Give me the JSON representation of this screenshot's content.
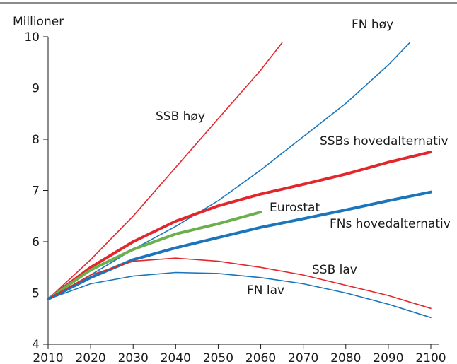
{
  "chart_data": {
    "type": "line",
    "ylabel": "Millioner",
    "xlim": [
      2010,
      2100
    ],
    "xticks": [
      2010,
      2020,
      2030,
      2040,
      2050,
      2060,
      2070,
      2080,
      2090,
      2100
    ],
    "ylim": [
      4,
      10
    ],
    "yticks": [
      4,
      5,
      6,
      7,
      8,
      9,
      10
    ],
    "series": [
      {
        "name": "SSB høy",
        "color": "#e3262b",
        "width": "thin",
        "x": [
          2010,
          2020,
          2030,
          2040,
          2050,
          2060,
          2065
        ],
        "values": [
          4.88,
          5.65,
          6.5,
          7.45,
          8.4,
          9.35,
          9.88
        ]
      },
      {
        "name": "FN høy",
        "color": "#1a75bb",
        "width": "thin",
        "x": [
          2010,
          2020,
          2030,
          2040,
          2050,
          2060,
          2070,
          2080,
          2090,
          2095
        ],
        "values": [
          4.88,
          5.35,
          5.85,
          6.3,
          6.8,
          7.4,
          8.05,
          8.7,
          9.45,
          9.88
        ]
      },
      {
        "name": "SSBs hovedalternativ",
        "color": "#e3262b",
        "width": "thick",
        "x": [
          2010,
          2020,
          2030,
          2040,
          2050,
          2060,
          2070,
          2080,
          2090,
          2100
        ],
        "values": [
          4.88,
          5.5,
          6.0,
          6.4,
          6.7,
          6.93,
          7.12,
          7.32,
          7.55,
          7.75
        ]
      },
      {
        "name": "Eurostat",
        "color": "#6ab04c",
        "width": "thick",
        "x": [
          2010,
          2020,
          2030,
          2040,
          2050,
          2060
        ],
        "values": [
          4.88,
          5.45,
          5.85,
          6.15,
          6.35,
          6.58
        ]
      },
      {
        "name": "FNs hovedalternativ",
        "color": "#1a75bb",
        "width": "thick",
        "x": [
          2010,
          2020,
          2030,
          2040,
          2050,
          2060,
          2070,
          2080,
          2090,
          2100
        ],
        "values": [
          4.88,
          5.3,
          5.65,
          5.88,
          6.08,
          6.28,
          6.45,
          6.62,
          6.8,
          6.97
        ]
      },
      {
        "name": "SSB lav",
        "color": "#e3262b",
        "width": "thin",
        "x": [
          2010,
          2020,
          2030,
          2040,
          2050,
          2060,
          2070,
          2080,
          2090,
          2100
        ],
        "values": [
          4.88,
          5.35,
          5.62,
          5.68,
          5.62,
          5.5,
          5.35,
          5.15,
          4.95,
          4.7
        ]
      },
      {
        "name": "FN lav",
        "color": "#1a75bb",
        "width": "thin",
        "x": [
          2010,
          2020,
          2030,
          2040,
          2050,
          2060,
          2070,
          2080,
          2090,
          2100
        ],
        "values": [
          4.88,
          5.18,
          5.33,
          5.4,
          5.38,
          5.3,
          5.18,
          5.0,
          4.78,
          4.52
        ]
      }
    ]
  }
}
